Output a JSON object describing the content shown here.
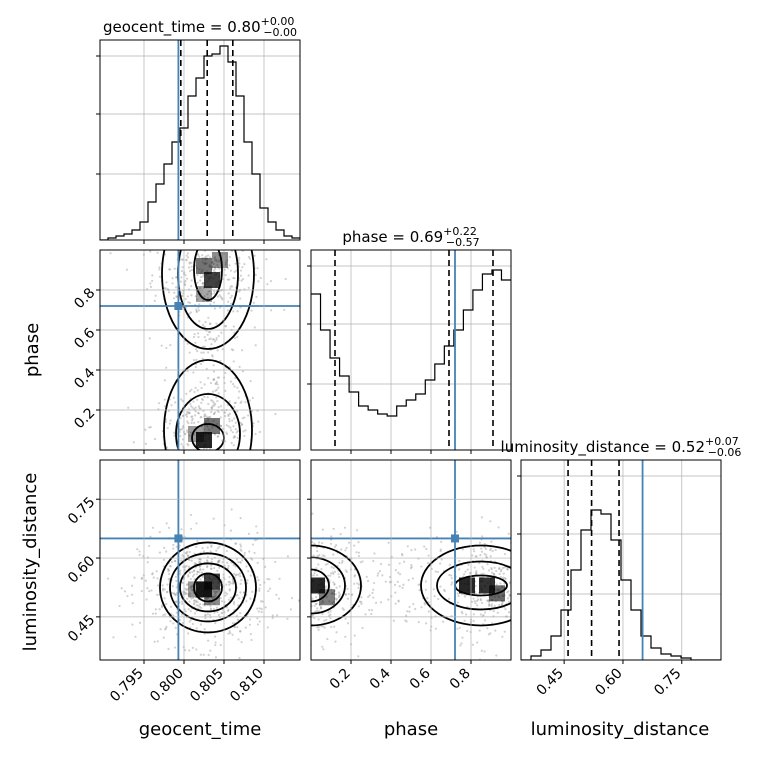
{
  "colors": {
    "truth": "#4682b4",
    "hist": "#000000",
    "grid": "#b0b0b0",
    "density": "#000000",
    "scatter": "#9a9a9a"
  },
  "chart_data": {
    "type": "corner",
    "grid": true,
    "parameters": [
      {
        "name": "geocent_time",
        "xlabel": "geocent_time",
        "ylabel": "",
        "title_lhs": "geocent_time = 0.80",
        "title_sup": "+0.00",
        "title_sub": "−0.00",
        "range": [
          0.7895,
          0.8145
        ],
        "ticks": [
          "0.795",
          "0.800",
          "0.805",
          "0.810"
        ],
        "tick_values": [
          0.795,
          0.8,
          0.805,
          0.81
        ],
        "truth": 0.7993,
        "quantiles": [
          0.7996,
          0.8029,
          0.8061
        ],
        "hist_bins": [
          0.7895,
          0.8145
        ],
        "hist_counts": [
          0.0,
          0.01,
          0.02,
          0.03,
          0.05,
          0.09,
          0.19,
          0.28,
          0.38,
          0.49,
          0.56,
          0.72,
          0.81,
          0.92,
          0.93,
          0.97,
          0.89,
          0.72,
          0.49,
          0.33,
          0.16,
          0.09,
          0.05,
          0.02,
          0.01
        ]
      },
      {
        "name": "phase",
        "xlabel": "phase",
        "ylabel": "phase",
        "title_lhs": "phase = 0.69",
        "title_sup": "+0.22",
        "title_sub": "−0.57",
        "range": [
          0.0,
          1.0
        ],
        "ticks": [
          "0.2",
          "0.4",
          "0.6",
          "0.8"
        ],
        "tick_values": [
          0.2,
          0.4,
          0.6,
          0.8
        ],
        "truth": 0.72,
        "quantiles": [
          0.12,
          0.69,
          0.91
        ],
        "hist_bins": [
          0.0,
          1.0
        ],
        "hist_counts": [
          0.78,
          0.6,
          0.46,
          0.37,
          0.29,
          0.22,
          0.2,
          0.18,
          0.17,
          0.22,
          0.25,
          0.28,
          0.35,
          0.43,
          0.52,
          0.6,
          0.7,
          0.8,
          0.88,
          0.9,
          0.85
        ]
      },
      {
        "name": "luminosity_distance",
        "xlabel": "luminosity_distance",
        "ylabel": "luminosity_distance",
        "title_lhs": "luminosity_distance = 0.52",
        "title_sup": "+0.07",
        "title_sub": "−0.06",
        "range": [
          0.34,
          0.85
        ],
        "ticks": [
          "0.45",
          "0.60",
          "0.75"
        ],
        "tick_values": [
          0.45,
          0.6,
          0.75
        ],
        "truth": 0.65,
        "quantiles": [
          0.46,
          0.52,
          0.59
        ],
        "hist_bins": [
          0.34,
          0.85
        ],
        "hist_counts": [
          0.0,
          0.02,
          0.05,
          0.12,
          0.25,
          0.45,
          0.65,
          0.75,
          0.73,
          0.6,
          0.4,
          0.25,
          0.12,
          0.06,
          0.03,
          0.02,
          0.01,
          0.0,
          0.0,
          0.0
        ]
      }
    ]
  }
}
